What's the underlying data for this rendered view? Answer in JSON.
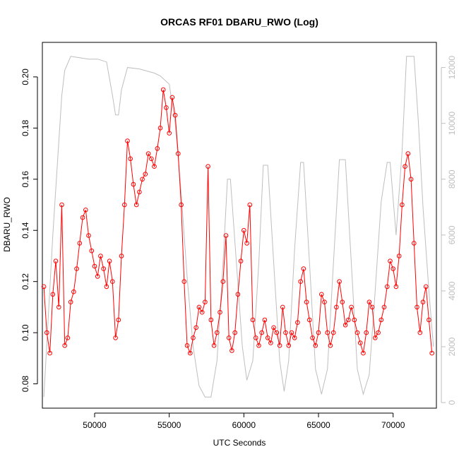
{
  "chart_data": {
    "type": "scatter",
    "title": "ORCAS RF01 DBARU_RWO (Log)",
    "xlabel": "UTC Seconds",
    "ylabel": "DBARU_RWO",
    "xlim": [
      46500,
      72900
    ],
    "ylim": [
      0.0705,
      0.2135
    ],
    "x_ticks": [
      50000,
      55000,
      60000,
      65000,
      70000
    ],
    "y_ticks": [
      0.08,
      0.1,
      0.12,
      0.14,
      0.16,
      0.18,
      0.2
    ],
    "y2_ticks": [
      0,
      2000,
      4000,
      6000,
      8000,
      10000,
      12000
    ],
    "y2lim": [
      -200,
      12900
    ],
    "grid": false,
    "colors": {
      "data": "#ff0000",
      "altitude": "#bebebe",
      "axis": "#000000",
      "axis2": "#bebebe"
    },
    "series": [
      {
        "role": "primary",
        "marker": "open-circle",
        "points": [
          [
            46600,
            0.118
          ],
          [
            46800,
            0.1
          ],
          [
            47000,
            0.092
          ],
          [
            47200,
            0.115
          ],
          [
            47400,
            0.128
          ],
          [
            47600,
            0.11
          ],
          [
            47800,
            0.15
          ],
          [
            48000,
            0.095
          ],
          [
            48200,
            0.098
          ],
          [
            48400,
            0.112
          ],
          [
            48600,
            0.116
          ],
          [
            48800,
            0.125
          ],
          [
            49000,
            0.135
          ],
          [
            49200,
            0.145
          ],
          [
            49400,
            0.148
          ],
          [
            49600,
            0.138
          ],
          [
            49800,
            0.132
          ],
          [
            50000,
            0.126
          ],
          [
            50200,
            0.122
          ],
          [
            50400,
            0.13
          ],
          [
            50600,
            0.125
          ],
          [
            50800,
            0.118
          ],
          [
            51000,
            0.128
          ],
          [
            51200,
            0.12
          ],
          [
            51400,
            0.098
          ],
          [
            51600,
            0.105
          ],
          [
            51800,
            0.13
          ],
          [
            52000,
            0.15
          ],
          [
            52200,
            0.175
          ],
          [
            52400,
            0.168
          ],
          [
            52600,
            0.158
          ],
          [
            52800,
            0.15
          ],
          [
            53000,
            0.155
          ],
          [
            53200,
            0.16
          ],
          [
            53400,
            0.162
          ],
          [
            53600,
            0.17
          ],
          [
            53800,
            0.168
          ],
          [
            54000,
            0.165
          ],
          [
            54200,
            0.172
          ],
          [
            54400,
            0.18
          ],
          [
            54600,
            0.195
          ],
          [
            54800,
            0.188
          ],
          [
            55000,
            0.178
          ],
          [
            55200,
            0.192
          ],
          [
            55400,
            0.185
          ],
          [
            55600,
            0.17
          ],
          [
            55800,
            0.15
          ],
          [
            56000,
            0.12
          ],
          [
            56200,
            0.095
          ],
          [
            56400,
            0.092
          ],
          [
            56600,
            0.098
          ],
          [
            56800,
            0.102
          ],
          [
            57000,
            0.11
          ],
          [
            57200,
            0.108
          ],
          [
            57400,
            0.112
          ],
          [
            57600,
            0.165
          ],
          [
            57800,
            0.105
          ],
          [
            58000,
            0.095
          ],
          [
            58200,
            0.1
          ],
          [
            58400,
            0.108
          ],
          [
            58600,
            0.12
          ],
          [
            58800,
            0.138
          ],
          [
            59000,
            0.098
          ],
          [
            59200,
            0.093
          ],
          [
            59400,
            0.1
          ],
          [
            59600,
            0.115
          ],
          [
            59800,
            0.128
          ],
          [
            60000,
            0.14
          ],
          [
            60200,
            0.135
          ],
          [
            60400,
            0.15
          ],
          [
            60600,
            0.105
          ],
          [
            60800,
            0.098
          ],
          [
            61000,
            0.095
          ],
          [
            61200,
            0.1
          ],
          [
            61400,
            0.105
          ],
          [
            61600,
            0.098
          ],
          [
            61800,
            0.096
          ],
          [
            62000,
            0.102
          ],
          [
            62200,
            0.1
          ],
          [
            62400,
            0.095
          ],
          [
            62600,
            0.11
          ],
          [
            62800,
            0.1
          ],
          [
            63000,
            0.095
          ],
          [
            63200,
            0.1
          ],
          [
            63400,
            0.098
          ],
          [
            63600,
            0.104
          ],
          [
            63800,
            0.12
          ],
          [
            64000,
            0.125
          ],
          [
            64200,
            0.112
          ],
          [
            64400,
            0.105
          ],
          [
            64600,
            0.098
          ],
          [
            64800,
            0.095
          ],
          [
            65000,
            0.1
          ],
          [
            65200,
            0.115
          ],
          [
            65400,
            0.112
          ],
          [
            65600,
            0.1
          ],
          [
            65800,
            0.095
          ],
          [
            66000,
            0.1
          ],
          [
            66200,
            0.11
          ],
          [
            66400,
            0.12
          ],
          [
            66600,
            0.112
          ],
          [
            66800,
            0.103
          ],
          [
            67000,
            0.105
          ],
          [
            67200,
            0.11
          ],
          [
            67400,
            0.105
          ],
          [
            67600,
            0.1
          ],
          [
            67800,
            0.096
          ],
          [
            68000,
            0.092
          ],
          [
            68200,
            0.1
          ],
          [
            68400,
            0.112
          ],
          [
            68600,
            0.11
          ],
          [
            68800,
            0.098
          ],
          [
            69000,
            0.1
          ],
          [
            69200,
            0.105
          ],
          [
            69400,
            0.11
          ],
          [
            69600,
            0.118
          ],
          [
            69800,
            0.128
          ],
          [
            70000,
            0.125
          ],
          [
            70200,
            0.118
          ],
          [
            70400,
            0.13
          ],
          [
            70600,
            0.15
          ],
          [
            70800,
            0.165
          ],
          [
            71000,
            0.17
          ],
          [
            71200,
            0.16
          ],
          [
            71400,
            0.135
          ],
          [
            71600,
            0.11
          ],
          [
            71800,
            0.1
          ],
          [
            72000,
            0.112
          ],
          [
            72200,
            0.118
          ],
          [
            72400,
            0.105
          ],
          [
            72600,
            0.092
          ]
        ]
      },
      {
        "role": "secondary",
        "axis": "right",
        "points": [
          [
            46600,
            200
          ],
          [
            47200,
            6000
          ],
          [
            47800,
            11000
          ],
          [
            48000,
            11900
          ],
          [
            48400,
            12400
          ],
          [
            49000,
            12350
          ],
          [
            49600,
            12300
          ],
          [
            50200,
            12300
          ],
          [
            50800,
            12200
          ],
          [
            51200,
            11000
          ],
          [
            51400,
            10300
          ],
          [
            51600,
            10300
          ],
          [
            51800,
            11200
          ],
          [
            52200,
            12000
          ],
          [
            53000,
            11950
          ],
          [
            54000,
            11800
          ],
          [
            54400,
            11700
          ],
          [
            55000,
            11400
          ],
          [
            55400,
            10000
          ],
          [
            55800,
            7500
          ],
          [
            56200,
            4500
          ],
          [
            56600,
            2000
          ],
          [
            57000,
            600
          ],
          [
            57400,
            200
          ],
          [
            57800,
            200
          ],
          [
            58200,
            1500
          ],
          [
            58600,
            5000
          ],
          [
            58900,
            8000
          ],
          [
            59100,
            8000
          ],
          [
            59500,
            5000
          ],
          [
            59900,
            2000
          ],
          [
            60200,
            800
          ],
          [
            60600,
            1500
          ],
          [
            61000,
            5000
          ],
          [
            61300,
            8500
          ],
          [
            61600,
            8500
          ],
          [
            62000,
            5000
          ],
          [
            62400,
            1500
          ],
          [
            62700,
            400
          ],
          [
            63000,
            1500
          ],
          [
            63400,
            5500
          ],
          [
            63800,
            8600
          ],
          [
            64000,
            8600
          ],
          [
            64400,
            5000
          ],
          [
            64800,
            1200
          ],
          [
            65200,
            300
          ],
          [
            65600,
            1200
          ],
          [
            66000,
            5000
          ],
          [
            66400,
            8700
          ],
          [
            66800,
            8700
          ],
          [
            67200,
            5000
          ],
          [
            67600,
            1200
          ],
          [
            68000,
            300
          ],
          [
            68400,
            1000
          ],
          [
            68800,
            4000
          ],
          [
            69200,
            7200
          ],
          [
            69600,
            8600
          ],
          [
            69800,
            8600
          ],
          [
            70200,
            6000
          ],
          [
            70600,
            9000
          ],
          [
            70900,
            12400
          ],
          [
            71400,
            12400
          ],
          [
            71700,
            10000
          ],
          [
            72000,
            7000
          ],
          [
            72400,
            4000
          ],
          [
            72700,
            2000
          ]
        ]
      }
    ]
  }
}
